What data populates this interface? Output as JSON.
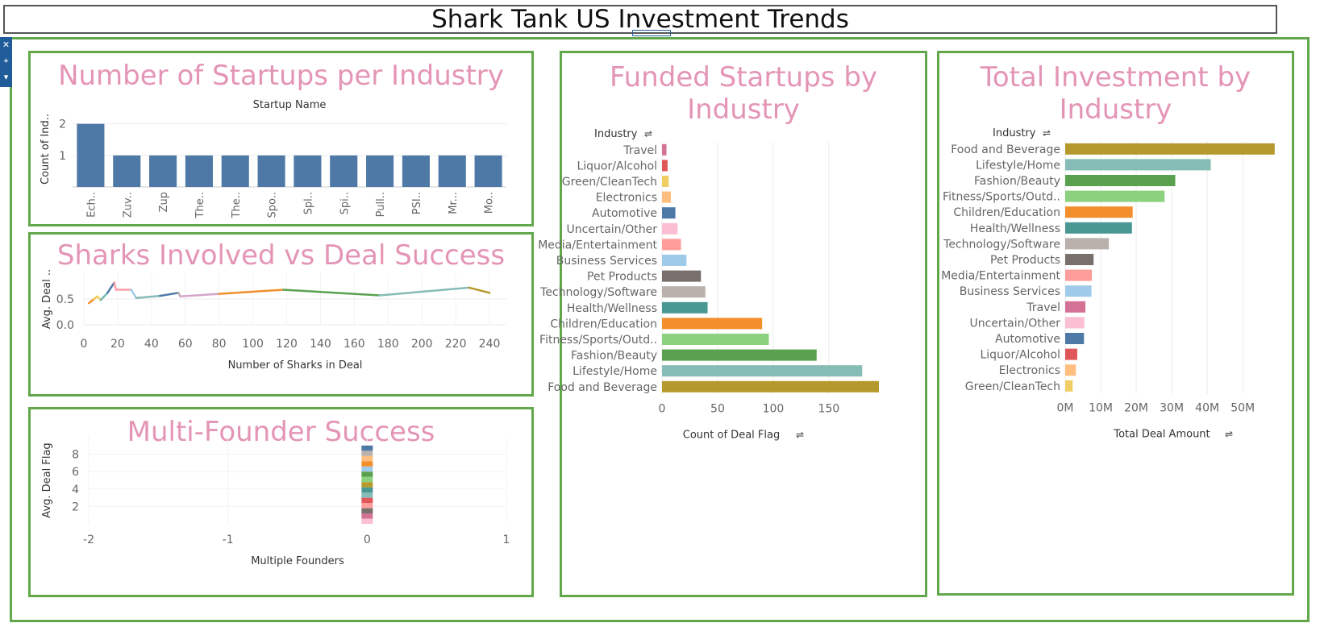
{
  "dashboard": {
    "title": "Shark Tank US Investment Trends"
  },
  "toolbar": {
    "close": "✕",
    "pin": "⌖",
    "menu": "▾"
  },
  "chart_data": [
    {
      "id": "startups-per-industry",
      "type": "bar",
      "title": "Number of Startups per Industry",
      "xlabel": "Startup Name",
      "ylabel": "Count of Ind..",
      "categories": [
        "Ech..",
        "Zuv..",
        "Zup",
        "The..",
        "The..",
        "Spo..",
        "Spl..",
        "Spi..",
        "Pull..",
        "PSI..",
        "Mr...",
        "Mo.."
      ],
      "values": [
        2,
        1,
        1,
        1,
        1,
        1,
        1,
        1,
        1,
        1,
        1,
        1
      ],
      "ylim": [
        0,
        2.4
      ],
      "yticks": [
        1,
        2
      ],
      "color": "#4e79a7"
    },
    {
      "id": "sharks-vs-success",
      "type": "line",
      "title": "Sharks Involved vs Deal Success",
      "xlabel": "Number of Sharks in Deal",
      "ylabel": "Avg. Deal ..",
      "xlim": [
        0,
        250
      ],
      "ylim": [
        0,
        1
      ],
      "xticks": [
        0,
        20,
        40,
        60,
        80,
        100,
        120,
        140,
        160,
        180,
        200,
        220,
        240
      ],
      "yticks": [
        0.0,
        0.5
      ],
      "ytick_labels": [
        "0.0",
        "0.5"
      ],
      "points": [
        {
          "x": 3,
          "y": 0.42,
          "c": "#e15759"
        },
        {
          "x": 6,
          "y": 0.5,
          "c": "#f28e2b"
        },
        {
          "x": 8,
          "y": 0.55,
          "c": "#edc948"
        },
        {
          "x": 10,
          "y": 0.48,
          "c": "#f1ce63"
        },
        {
          "x": 14,
          "y": 0.62,
          "c": "#76b7b2"
        },
        {
          "x": 18,
          "y": 0.82,
          "c": "#4e79a7"
        },
        {
          "x": 19,
          "y": 0.68,
          "c": "#ff9da7"
        },
        {
          "x": 28,
          "y": 0.68,
          "c": "#ff9da7"
        },
        {
          "x": 31,
          "y": 0.52,
          "c": "#a0cbe8"
        },
        {
          "x": 45,
          "y": 0.56,
          "c": "#86bcb6"
        },
        {
          "x": 56,
          "y": 0.62,
          "c": "#4e79a7"
        },
        {
          "x": 57,
          "y": 0.55,
          "c": "#bab0ac"
        },
        {
          "x": 80,
          "y": 0.6,
          "c": "#d4a6c8"
        },
        {
          "x": 118,
          "y": 0.68,
          "c": "#f28e2b"
        },
        {
          "x": 175,
          "y": 0.57,
          "c": "#59a14f"
        },
        {
          "x": 228,
          "y": 0.72,
          "c": "#86bcb6"
        },
        {
          "x": 240,
          "y": 0.62,
          "c": "#b6992d"
        }
      ]
    },
    {
      "id": "multi-founder-success",
      "type": "bar",
      "title": "Multi-Founder Success",
      "xlabel": "Multiple Founders",
      "ylabel": "Avg. Deal Flag",
      "xlim": [
        -2,
        1
      ],
      "ylim": [
        0,
        10
      ],
      "xticks": [
        -2,
        -1,
        0,
        1
      ],
      "yticks": [
        2,
        4,
        6,
        8
      ],
      "stack_x": 0,
      "segments": [
        {
          "v": 0.6,
          "c": "#fabfd2"
        },
        {
          "v": 0.6,
          "c": "#d37295"
        },
        {
          "v": 0.6,
          "c": "#79706e"
        },
        {
          "v": 0.6,
          "c": "#ff9d9a"
        },
        {
          "v": 0.6,
          "c": "#e15759"
        },
        {
          "v": 0.6,
          "c": "#86bcb6"
        },
        {
          "v": 0.6,
          "c": "#499894"
        },
        {
          "v": 0.6,
          "c": "#b6992d"
        },
        {
          "v": 0.6,
          "c": "#8cd17d"
        },
        {
          "v": 0.6,
          "c": "#59a14f"
        },
        {
          "v": 0.6,
          "c": "#a0cbe8"
        },
        {
          "v": 0.6,
          "c": "#f28e2b"
        },
        {
          "v": 0.6,
          "c": "#ffbe7d"
        },
        {
          "v": 0.6,
          "c": "#bab0ac"
        },
        {
          "v": 0.6,
          "c": "#4e79a7"
        }
      ]
    },
    {
      "id": "funded-by-industry",
      "type": "bar",
      "orientation": "horizontal",
      "title": "Funded Startups by Industry",
      "title_lines": [
        "Funded Startups by",
        "Industry"
      ],
      "ylabel": "Industry",
      "xlabel": "Count of Deal Flag",
      "xlim": [
        0,
        195
      ],
      "xticks": [
        0,
        50,
        100,
        150
      ],
      "categories": [
        "Travel",
        "Liquor/Alcohol",
        "Green/CleanTech",
        "Electronics",
        "Automotive",
        "Uncertain/Other",
        "Media/Entertainment",
        "Business Services",
        "Pet Products",
        "Technology/Software",
        "Health/Wellness",
        "Children/Education",
        "Fitness/Sports/Outd..",
        "Fashion/Beauty",
        "Lifestyle/Home",
        "Food and Beverage"
      ],
      "values": [
        4,
        5,
        6,
        8,
        12,
        14,
        17,
        22,
        35,
        39,
        41,
        90,
        96,
        139,
        180,
        195
      ],
      "colors": [
        "#d37295",
        "#e15759",
        "#f1ce63",
        "#ffbe7d",
        "#4e79a7",
        "#fabfd2",
        "#ff9d9a",
        "#a0cbe8",
        "#79706e",
        "#bab0ac",
        "#499894",
        "#f28e2b",
        "#8cd17d",
        "#59a14f",
        "#86bcb6",
        "#b6992d"
      ]
    },
    {
      "id": "total-investment",
      "type": "bar",
      "orientation": "horizontal",
      "title": "Total Investment by Industry",
      "title_lines": [
        "Total Investment by",
        "Industry"
      ],
      "ylabel": "Industry",
      "xlabel": "Total Deal Amount",
      "xlim": [
        0,
        59500000
      ],
      "xticks": [
        0,
        10000000,
        20000000,
        30000000,
        40000000,
        50000000
      ],
      "xtick_labels": [
        "0M",
        "10M",
        "20M",
        "30M",
        "40M",
        "50M"
      ],
      "categories": [
        "Food and Beverage",
        "Lifestyle/Home",
        "Fashion/Beauty",
        "Fitness/Sports/Outd..",
        "Children/Education",
        "Health/Wellness",
        "Technology/Software",
        "Pet Products",
        "Media/Entertainment",
        "Business Services",
        "Travel",
        "Uncertain/Other",
        "Automotive",
        "Liquor/Alcohol",
        "Electronics",
        "Green/CleanTech"
      ],
      "values": [
        59000000,
        41000000,
        31000000,
        28000000,
        19000000,
        18800000,
        12300000,
        8000000,
        7500000,
        7400000,
        5700000,
        5400000,
        5300000,
        3400000,
        3000000,
        2100000
      ],
      "colors": [
        "#b6992d",
        "#86bcb6",
        "#59a14f",
        "#8cd17d",
        "#f28e2b",
        "#499894",
        "#bab0ac",
        "#79706e",
        "#ff9d9a",
        "#a0cbe8",
        "#d37295",
        "#fabfd2",
        "#4e79a7",
        "#e15759",
        "#ffbe7d",
        "#f1ce63"
      ]
    }
  ]
}
